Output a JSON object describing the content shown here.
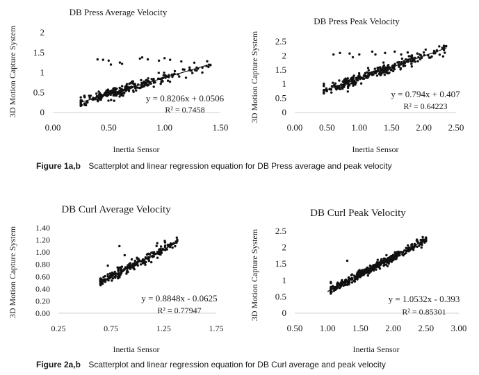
{
  "figure_1": {
    "caption_label": "Figure 1a,b",
    "caption_text": "Scatterplot and linear regression equation for DB Press average and peak velocity"
  },
  "figure_2": {
    "caption_label": "Figure 2a,b",
    "caption_text": "Scatterplot and linear regression equation for DB Curl average and peak velocity"
  },
  "chart_data": [
    {
      "type": "scatter",
      "title": "DB Press Average Velocity",
      "xlabel": "Inertia Sensor",
      "ylabel": "3D Motion Capture System",
      "xlim": [
        0,
        1.5
      ],
      "ylim": [
        0,
        2
      ],
      "xticks": [
        "0.00",
        "0.50",
        "1.00",
        "1.50"
      ],
      "yticks": [
        "0",
        "0.5",
        "1",
        "1.5",
        "2"
      ],
      "x_range": [
        0.25,
        1.42
      ],
      "slope": 0.8206,
      "intercept": 0.0506,
      "noise": 0.07,
      "n_points": 260,
      "cluster_mean": 0.58,
      "cluster_sd": 0.27,
      "outliers": [
        [
          0.4,
          1.33
        ],
        [
          0.45,
          1.32
        ],
        [
          0.5,
          1.3
        ],
        [
          0.52,
          1.2
        ],
        [
          0.6,
          1.25
        ],
        [
          0.62,
          1.22
        ],
        [
          0.78,
          1.35
        ],
        [
          0.8,
          1.38
        ],
        [
          0.85,
          1.33
        ],
        [
          0.95,
          1.3
        ],
        [
          1.0,
          1.36
        ],
        [
          1.05,
          1.32
        ],
        [
          1.15,
          1.28
        ],
        [
          1.3,
          1.1
        ]
      ],
      "trendline": {
        "from": 0.25,
        "to": 1.42
      },
      "equation": "y = 0.8206x + 0.0506",
      "r_squared": "R² = 0.7458"
    },
    {
      "type": "scatter",
      "title": "DB Press Peak Velocity",
      "xlabel": "Inertia Sensor",
      "ylabel": "3D Motion Capture System",
      "xlim": [
        0,
        2.5
      ],
      "ylim": [
        0,
        2.5
      ],
      "xticks": [
        "0.00",
        "0.50",
        "1.00",
        "1.50",
        "2.00",
        "2.50"
      ],
      "yticks": [
        "0",
        "0.5",
        "1",
        "1.5",
        "2",
        "2.5"
      ],
      "x_range": [
        0.45,
        2.35
      ],
      "slope": 0.794,
      "intercept": 0.407,
      "noise": 0.1,
      "n_points": 260,
      "cluster_mean": 1.1,
      "cluster_sd": 0.42,
      "outliers": [
        [
          0.6,
          2.05
        ],
        [
          0.7,
          2.1
        ],
        [
          0.85,
          2.08
        ],
        [
          0.9,
          1.95
        ],
        [
          1.0,
          2.05
        ],
        [
          1.2,
          2.15
        ],
        [
          1.25,
          2.05
        ],
        [
          1.4,
          2.1
        ],
        [
          1.55,
          2.15
        ],
        [
          1.65,
          2.05
        ],
        [
          1.75,
          2.12
        ],
        [
          1.9,
          2.08
        ],
        [
          2.0,
          2.12
        ],
        [
          2.3,
          1.98
        ]
      ],
      "trendline": {
        "from": 0.45,
        "to": 2.35
      },
      "equation": "y = 0.794x + 0.407",
      "r_squared": "R² = 0.64223"
    },
    {
      "type": "scatter",
      "title": "DB Curl Average Velocity",
      "xlabel": "Inertia Sensor",
      "ylabel": "3D Motion Capture System",
      "xlim": [
        0.25,
        1.75
      ],
      "ylim": [
        0,
        1.4
      ],
      "xticks": [
        "0.25",
        "0.75",
        "1.25",
        "1.75"
      ],
      "yticks": [
        "0.00",
        "0.20",
        "0.40",
        "0.60",
        "0.80",
        "1.00",
        "1.20",
        "1.40"
      ],
      "x_range": [
        0.65,
        1.38
      ],
      "slope": 0.8848,
      "intercept": -0.0625,
      "noise": 0.045,
      "n_points": 230,
      "cluster_mean": 0.9,
      "cluster_sd": 0.2,
      "outliers": [
        [
          0.83,
          1.1
        ],
        [
          0.88,
          0.95
        ],
        [
          0.72,
          0.78
        ],
        [
          1.3,
          1.12
        ]
      ],
      "trendline": {
        "from": 0.65,
        "to": 1.38
      },
      "equation": "y = 0.8848x - 0.0625",
      "r_squared": "R² = 0.77947"
    },
    {
      "type": "scatter",
      "title": "DB Curl Peak Velocity",
      "xlabel": "Inertia Sensor",
      "ylabel": "3D Motion Capture System",
      "xlim": [
        0.5,
        3
      ],
      "ylim": [
        0,
        2.5
      ],
      "xticks": [
        "0.50",
        "1.00",
        "1.50",
        "2.00",
        "2.50",
        "3.00"
      ],
      "yticks": [
        "0",
        "0.5",
        "1",
        "1.5",
        "2",
        "2.5"
      ],
      "x_range": [
        1.05,
        2.5
      ],
      "slope": 1.0532,
      "intercept": -0.393,
      "noise": 0.06,
      "n_points": 420,
      "cluster_mean": 1.7,
      "cluster_sd": 0.42,
      "outliers": [
        [
          1.05,
          0.95
        ],
        [
          1.3,
          1.6
        ],
        [
          2.45,
          2.32
        ]
      ],
      "trendline": {
        "from": 1.0,
        "to": 2.5
      },
      "equation": "y = 1.0532x - 0.393",
      "r_squared": "R² = 0.85301"
    }
  ]
}
